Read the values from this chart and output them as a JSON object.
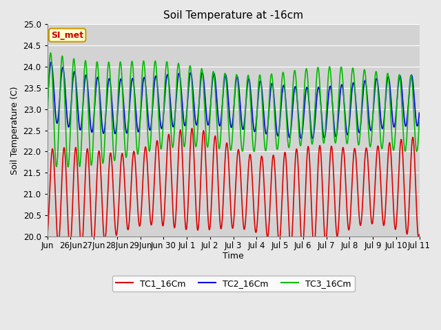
{
  "title": "Soil Temperature at -16cm",
  "xlabel": "Time",
  "ylabel": "Soil Temperature (C)",
  "ylim": [
    20.0,
    25.0
  ],
  "yticks": [
    20.0,
    20.5,
    21.0,
    21.5,
    22.0,
    22.5,
    23.0,
    23.5,
    24.0,
    24.5,
    25.0
  ],
  "bg_color": "#e8e8e8",
  "plot_bg_color": "#d3d3d3",
  "grid_color": "#ffffff",
  "annotation_text": "SI_met",
  "annotation_bg": "#ffffcc",
  "annotation_border": "#cc9900",
  "annotation_text_color": "#cc0000",
  "tc1_color": "#dd0000",
  "tc2_color": "#0000dd",
  "tc3_color": "#00bb00",
  "line_width": 1.2,
  "legend_labels": [
    "TC1_16Cm",
    "TC2_16Cm",
    "TC3_16Cm"
  ],
  "xlim_days": 16,
  "xtick_labels": [
    "Jun",
    "26Jun",
    "27Jun",
    "28Jun",
    "29Jun",
    "Jun 30",
    "Jul 1",
    "Jul 2",
    "Jul 3",
    "Jul 4",
    "Jul 5",
    "Jul 6",
    "Jul 7",
    "Jul 8",
    "Jul 9",
    "Jul 10",
    "Jul 11"
  ],
  "figsize": [
    6.4,
    4.8
  ],
  "dpi": 100
}
